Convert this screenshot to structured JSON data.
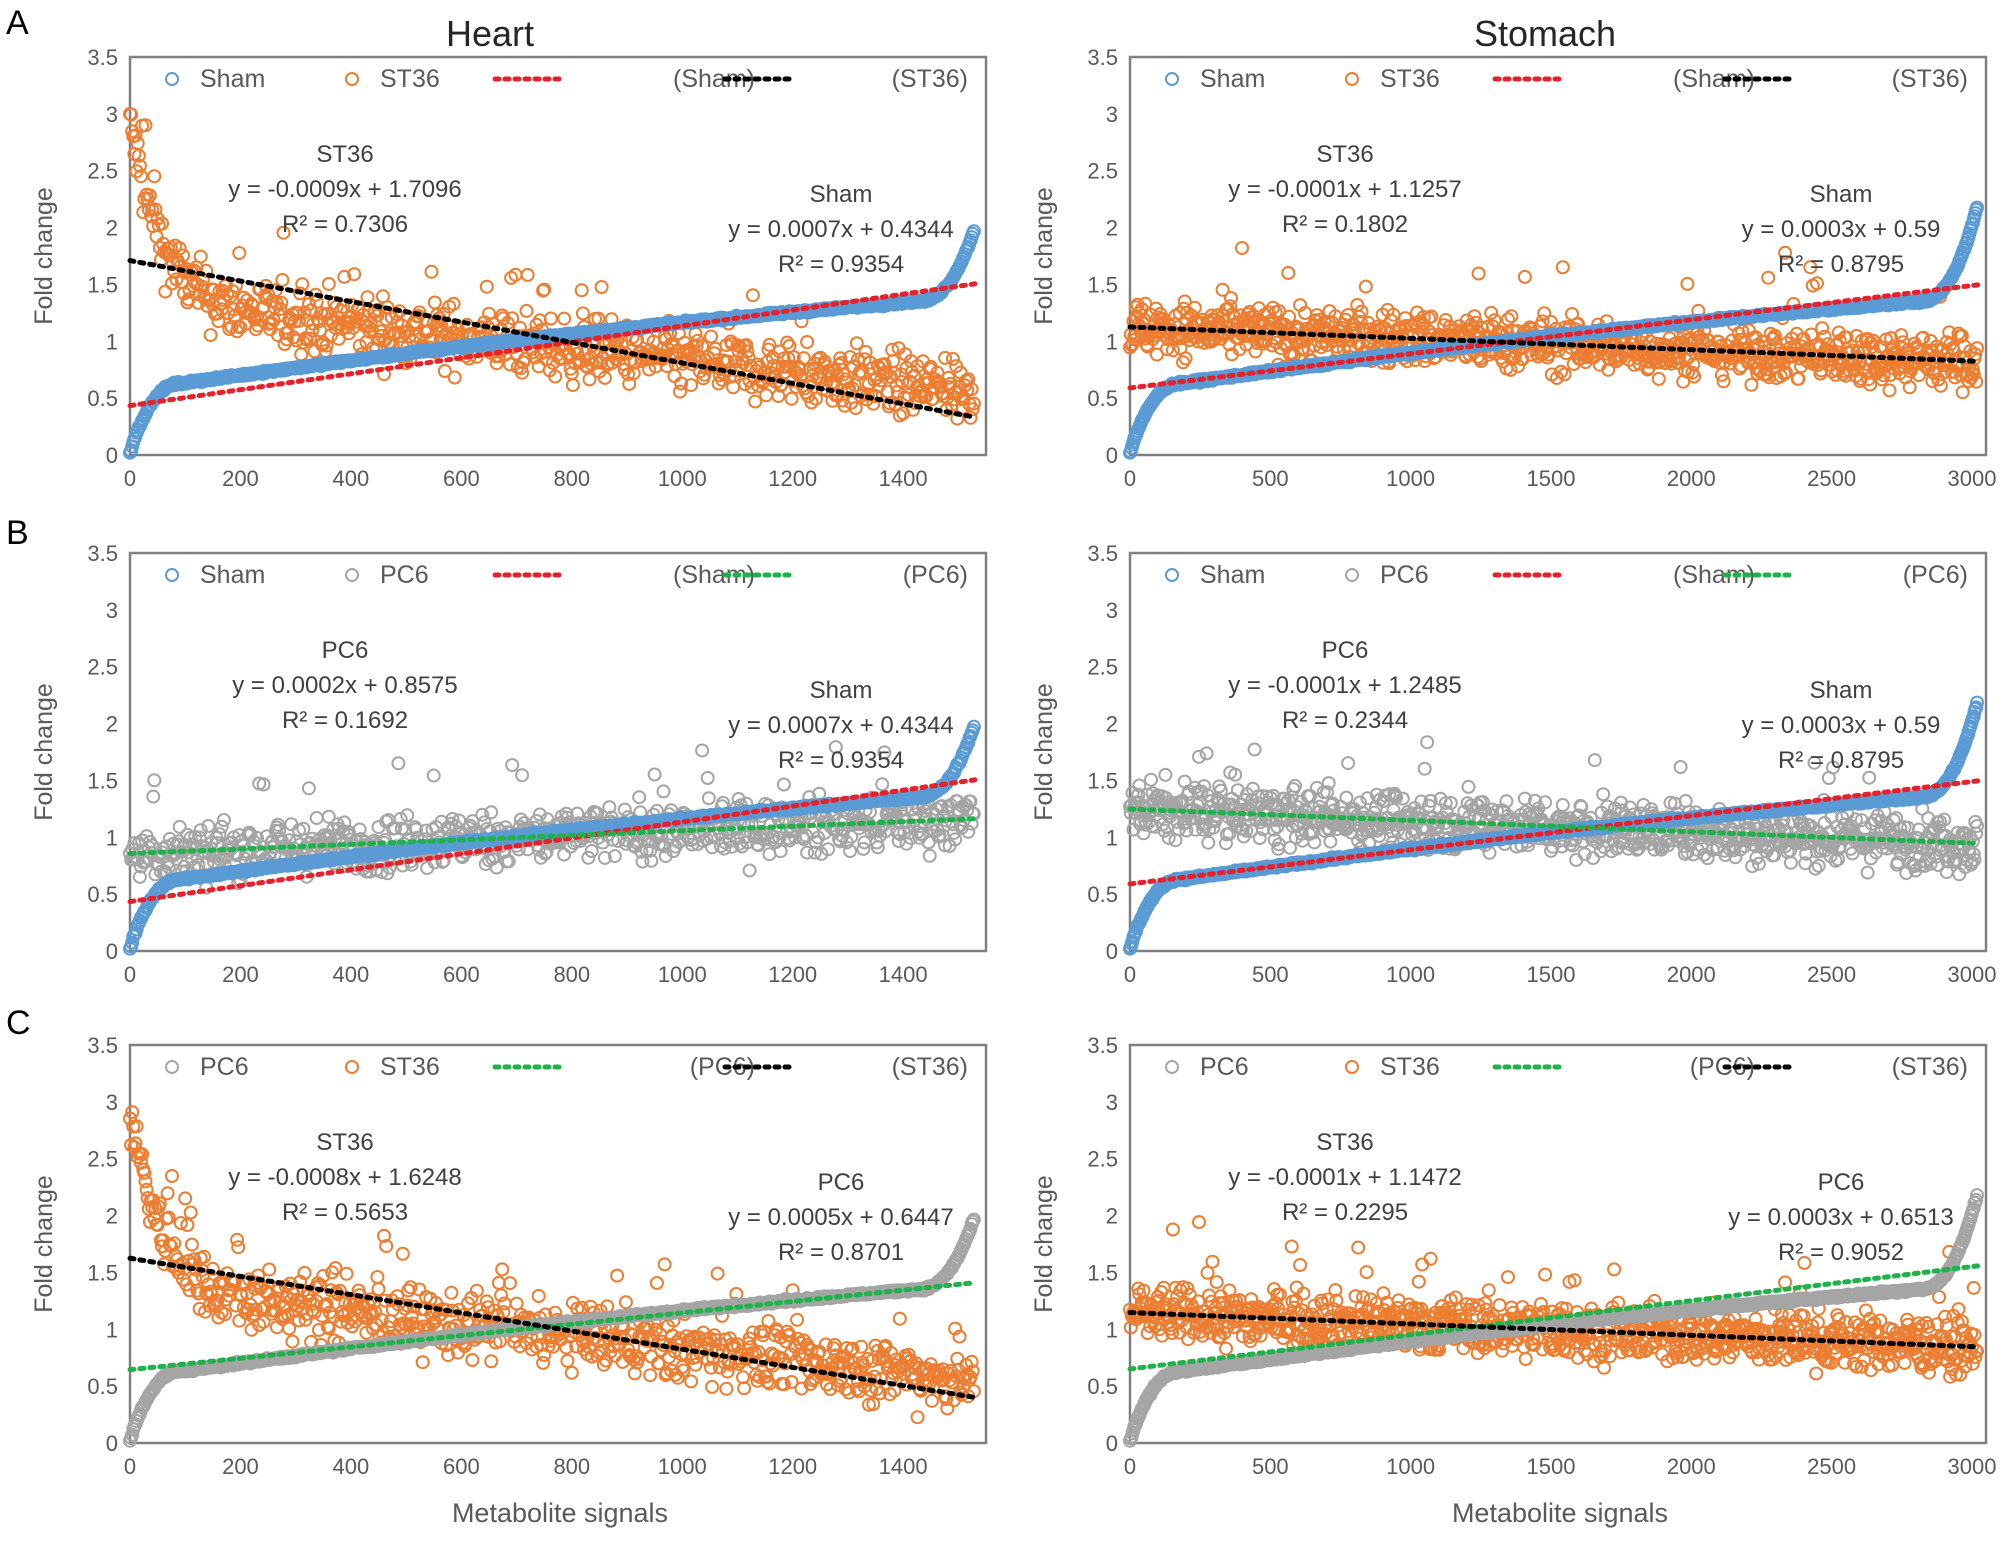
{
  "figure": {
    "col_titles": [
      "Heart",
      "Stomach"
    ],
    "row_labels": [
      "A",
      "B",
      "C"
    ],
    "xlabel": "Metabolite signals",
    "ylabel": "Fold change"
  },
  "colors": {
    "Sham": "#5B9BD5",
    "ST36": "#ED7D31",
    "PC6": "#A5A5A5",
    "trend_Sham": "#E8202A",
    "trend_ST36": "#000000",
    "trend_PC6": "#1FB24A",
    "axis": "#595959",
    "frame": "#7F7F7F",
    "text": "#404040"
  },
  "chart_data": [
    {
      "id": "A-heart",
      "type": "scatter",
      "row": "A",
      "tissue": "Heart",
      "xlim": [
        0,
        1550
      ],
      "ylim": [
        0,
        3.5
      ],
      "xticks": [
        0,
        200,
        400,
        600,
        800,
        1000,
        1200,
        1400
      ],
      "yticks": [
        0,
        0.5,
        1,
        1.5,
        2,
        2.5,
        3,
        3.5
      ],
      "legend": [
        "Sham",
        "ST36",
        "(Sham)",
        "(ST36)"
      ],
      "series": [
        {
          "name": "Sham",
          "shape": "ascending",
          "n": 1530,
          "slope": 0.0007,
          "intercept": 0.4344,
          "r2": 0.9354
        },
        {
          "name": "ST36",
          "shape": "descending",
          "n": 1530,
          "slope": -0.0009,
          "intercept": 1.7096,
          "r2": 0.7306
        }
      ],
      "annotations": [
        {
          "series": "ST36",
          "lines": [
            "ST36",
            "y = -0.0009x + 1.7096",
            "R² = 0.7306"
          ]
        },
        {
          "series": "Sham",
          "lines": [
            "Sham",
            "y = 0.0007x + 0.4344",
            "R² = 0.9354"
          ]
        }
      ]
    },
    {
      "id": "A-stomach",
      "type": "scatter",
      "row": "A",
      "tissue": "Stomach",
      "xlim": [
        0,
        3050
      ],
      "ylim": [
        0,
        3.5
      ],
      "xticks": [
        0,
        500,
        1000,
        1500,
        2000,
        2500,
        3000
      ],
      "yticks": [
        0,
        0.5,
        1,
        1.5,
        2,
        2.5,
        3,
        3.5
      ],
      "legend": [
        "Sham",
        "ST36",
        "(Sham)",
        "(ST36)"
      ],
      "series": [
        {
          "name": "Sham",
          "shape": "ascending",
          "n": 3020,
          "slope": 0.0003,
          "intercept": 0.59,
          "r2": 0.8795
        },
        {
          "name": "ST36",
          "shape": "flat",
          "n": 3020,
          "slope": -0.0001,
          "intercept": 1.1257,
          "r2": 0.1802
        }
      ],
      "annotations": [
        {
          "series": "ST36",
          "lines": [
            "ST36",
            "y = -0.0001x + 1.1257",
            "R² = 0.1802"
          ]
        },
        {
          "series": "Sham",
          "lines": [
            "Sham",
            "y = 0.0003x + 0.59",
            "R² = 0.8795"
          ]
        }
      ]
    },
    {
      "id": "B-heart",
      "type": "scatter",
      "row": "B",
      "tissue": "Heart",
      "xlim": [
        0,
        1550
      ],
      "ylim": [
        0,
        3.5
      ],
      "xticks": [
        0,
        200,
        400,
        600,
        800,
        1000,
        1200,
        1400
      ],
      "yticks": [
        0,
        0.5,
        1,
        1.5,
        2,
        2.5,
        3,
        3.5
      ],
      "legend": [
        "Sham",
        "PC6",
        "(Sham)",
        "(PC6)"
      ],
      "series": [
        {
          "name": "Sham",
          "shape": "ascending",
          "n": 1530,
          "slope": 0.0007,
          "intercept": 0.4344,
          "r2": 0.9354
        },
        {
          "name": "PC6",
          "shape": "flat",
          "n": 1530,
          "slope": 0.0002,
          "intercept": 0.8575,
          "r2": 0.1692
        }
      ],
      "annotations": [
        {
          "series": "PC6",
          "lines": [
            "PC6",
            "y = 0.0002x + 0.8575",
            "R² = 0.1692"
          ]
        },
        {
          "series": "Sham",
          "lines": [
            "Sham",
            "y = 0.0007x + 0.4344",
            "R² = 0.9354"
          ]
        }
      ]
    },
    {
      "id": "B-stomach",
      "type": "scatter",
      "row": "B",
      "tissue": "Stomach",
      "xlim": [
        0,
        3050
      ],
      "ylim": [
        0,
        3.5
      ],
      "xticks": [
        0,
        500,
        1000,
        1500,
        2000,
        2500,
        3000
      ],
      "yticks": [
        0,
        0.5,
        1,
        1.5,
        2,
        2.5,
        3,
        3.5
      ],
      "legend": [
        "Sham",
        "PC6",
        "(Sham)",
        "(PC6)"
      ],
      "series": [
        {
          "name": "Sham",
          "shape": "ascending",
          "n": 3020,
          "slope": 0.0003,
          "intercept": 0.59,
          "r2": 0.8795
        },
        {
          "name": "PC6",
          "shape": "flat",
          "n": 3020,
          "slope": -0.0001,
          "intercept": 1.2485,
          "r2": 0.2344
        }
      ],
      "annotations": [
        {
          "series": "PC6",
          "lines": [
            "PC6",
            "y = -0.0001x + 1.2485",
            "R² = 0.2344"
          ]
        },
        {
          "series": "Sham",
          "lines": [
            "Sham",
            "y = 0.0003x + 0.59",
            "R² = 0.8795"
          ]
        }
      ]
    },
    {
      "id": "C-heart",
      "type": "scatter",
      "row": "C",
      "tissue": "Heart",
      "xlim": [
        0,
        1550
      ],
      "ylim": [
        0,
        3.5
      ],
      "xticks": [
        0,
        200,
        400,
        600,
        800,
        1000,
        1200,
        1400
      ],
      "yticks": [
        0,
        0.5,
        1,
        1.5,
        2,
        2.5,
        3,
        3.5
      ],
      "legend": [
        "PC6",
        "ST36",
        "(PC6)",
        "(ST36)"
      ],
      "series": [
        {
          "name": "PC6",
          "shape": "ascending",
          "n": 1530,
          "slope": 0.0005,
          "intercept": 0.6447,
          "r2": 0.8701
        },
        {
          "name": "ST36",
          "shape": "descending",
          "n": 1530,
          "slope": -0.0008,
          "intercept": 1.6248,
          "r2": 0.5653
        }
      ],
      "annotations": [
        {
          "series": "ST36",
          "lines": [
            "ST36",
            "y = -0.0008x + 1.6248",
            "R² = 0.5653"
          ]
        },
        {
          "series": "PC6",
          "lines": [
            "PC6",
            "y = 0.0005x + 0.6447",
            "R² = 0.8701"
          ]
        }
      ]
    },
    {
      "id": "C-stomach",
      "type": "scatter",
      "row": "C",
      "tissue": "Stomach",
      "xlim": [
        0,
        3050
      ],
      "ylim": [
        0,
        3.5
      ],
      "xticks": [
        0,
        500,
        1000,
        1500,
        2000,
        2500,
        3000
      ],
      "yticks": [
        0,
        0.5,
        1,
        1.5,
        2,
        2.5,
        3,
        3.5
      ],
      "legend": [
        "PC6",
        "ST36",
        "(PC6)",
        "(ST36)"
      ],
      "series": [
        {
          "name": "PC6",
          "shape": "ascending",
          "n": 3020,
          "slope": 0.0003,
          "intercept": 0.6513,
          "r2": 0.9052
        },
        {
          "name": "ST36",
          "shape": "flat",
          "n": 3020,
          "slope": -0.0001,
          "intercept": 1.1472,
          "r2": 0.2295
        }
      ],
      "annotations": [
        {
          "series": "ST36",
          "lines": [
            "ST36",
            "y = -0.0001x + 1.1472",
            "R² = 0.2295"
          ]
        },
        {
          "series": "PC6",
          "lines": [
            "PC6",
            "y = 0.0003x + 0.6513",
            "R² = 0.9052"
          ]
        }
      ]
    }
  ]
}
